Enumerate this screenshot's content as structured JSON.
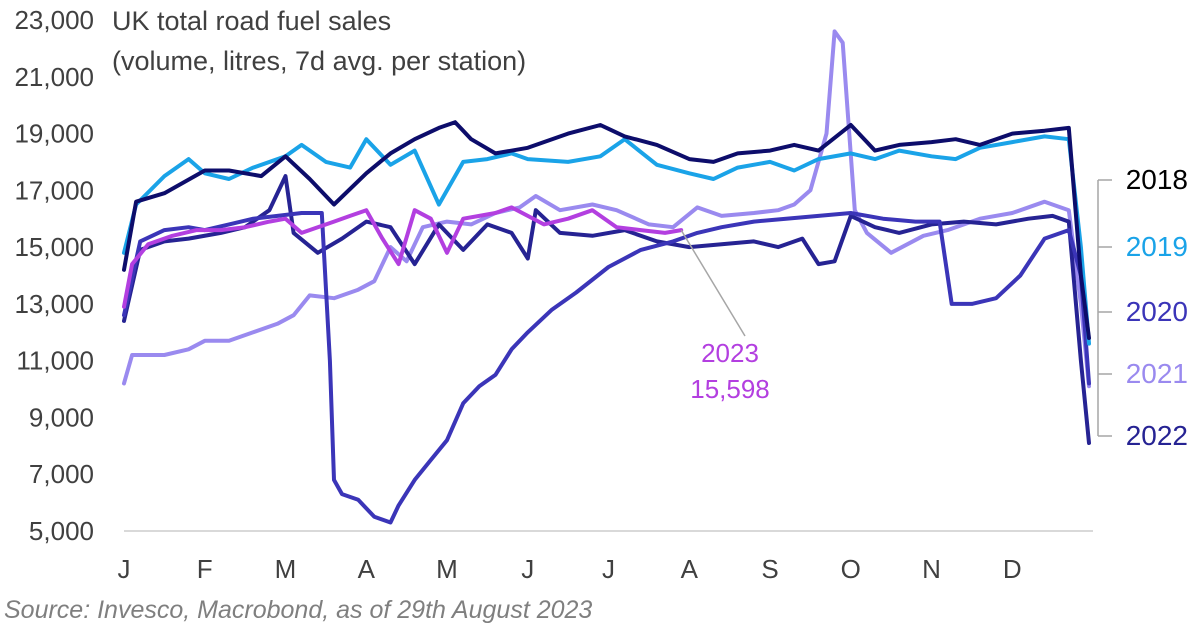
{
  "chart_data": {
    "type": "line",
    "title": "UK total road fuel sales",
    "subtitle": "(volume, litres, 7d avg. per station)",
    "xlabel": "",
    "ylabel": "",
    "ylim": [
      5000,
      23000
    ],
    "yticks": [
      5000,
      7000,
      9000,
      11000,
      13000,
      15000,
      17000,
      19000,
      21000,
      23000
    ],
    "ytick_labels": [
      "5,000",
      "7,000",
      "9,000",
      "11,000",
      "13,000",
      "15,000",
      "17,000",
      "19,000",
      "21,000",
      "23,000"
    ],
    "xlim": [
      0,
      12
    ],
    "x_tick_positions": [
      0,
      1,
      2,
      3,
      4,
      5,
      6,
      7,
      8,
      9,
      10,
      11
    ],
    "x_tick_labels": [
      "J",
      "F",
      "M",
      "A",
      "M",
      "J",
      "J",
      "A",
      "S",
      "O",
      "N",
      "D"
    ],
    "grid": false,
    "legend": "right",
    "series": [
      {
        "name": "2018",
        "color": "#0d0d6b",
        "x": [
          0,
          0.15,
          0.5,
          1,
          1.3,
          1.7,
          2,
          2.3,
          2.6,
          3,
          3.3,
          3.6,
          3.9,
          4.1,
          4.3,
          4.6,
          5,
          5.5,
          5.9,
          6.2,
          6.6,
          7,
          7.3,
          7.6,
          8,
          8.3,
          8.6,
          9,
          9.3,
          9.6,
          10,
          10.3,
          10.6,
          11,
          11.4,
          11.7,
          11.85,
          11.95
        ],
        "values": [
          14200,
          16600,
          16900,
          17700,
          17700,
          17500,
          18200,
          17400,
          16500,
          17600,
          18300,
          18800,
          19200,
          19400,
          18800,
          18300,
          18500,
          19000,
          19300,
          18900,
          18600,
          18100,
          18000,
          18300,
          18400,
          18600,
          18400,
          19300,
          18400,
          18600,
          18700,
          18800,
          18600,
          19000,
          19100,
          19200,
          14000,
          11800
        ]
      },
      {
        "name": "2019",
        "color": "#1aa3e8",
        "x": [
          0,
          0.15,
          0.5,
          0.8,
          1,
          1.3,
          1.6,
          2,
          2.2,
          2.5,
          2.8,
          3,
          3.3,
          3.6,
          3.9,
          4.2,
          4.5,
          4.8,
          5,
          5.5,
          5.9,
          6.2,
          6.6,
          7,
          7.3,
          7.6,
          8,
          8.3,
          8.6,
          9,
          9.3,
          9.6,
          10,
          10.3,
          10.6,
          11,
          11.4,
          11.7,
          11.85,
          11.95
        ],
        "values": [
          14800,
          16500,
          17500,
          18100,
          17600,
          17400,
          17800,
          18200,
          18600,
          18000,
          17800,
          18800,
          17900,
          18400,
          16500,
          18000,
          18100,
          18300,
          18100,
          18000,
          18200,
          18800,
          17900,
          17600,
          17400,
          17800,
          18000,
          17700,
          18100,
          18300,
          18100,
          18400,
          18200,
          18100,
          18500,
          18700,
          18900,
          18800,
          15000,
          11600
        ]
      },
      {
        "name": "2020",
        "color": "#3b35b8",
        "x": [
          0,
          0.2,
          0.5,
          0.8,
          1,
          1.3,
          1.6,
          1.9,
          2.2,
          2.45,
          2.55,
          2.6,
          2.7,
          2.9,
          3.1,
          3.3,
          3.4,
          3.6,
          3.8,
          4,
          4.2,
          4.4,
          4.6,
          4.8,
          5,
          5.3,
          5.6,
          6,
          6.4,
          6.8,
          7.1,
          7.4,
          7.8,
          8.2,
          8.6,
          9,
          9.4,
          9.8,
          10.1,
          10.25,
          10.5,
          10.8,
          11.1,
          11.4,
          11.7,
          11.85,
          11.95
        ],
        "values": [
          12600,
          15200,
          15600,
          15700,
          15600,
          15800,
          16000,
          16100,
          16200,
          16200,
          11000,
          6800,
          6300,
          6100,
          5500,
          5300,
          5900,
          6800,
          7500,
          8200,
          9500,
          10100,
          10500,
          11400,
          12000,
          12800,
          13400,
          14300,
          14900,
          15200,
          15500,
          15700,
          15900,
          16000,
          16100,
          16200,
          16000,
          15900,
          15900,
          13000,
          13000,
          13200,
          14000,
          15300,
          15600,
          14000,
          10200
        ]
      },
      {
        "name": "2021",
        "color": "#9a8aef",
        "x": [
          0,
          0.1,
          0.5,
          0.8,
          1,
          1.3,
          1.6,
          1.9,
          2.1,
          2.3,
          2.6,
          2.9,
          3.1,
          3.3,
          3.5,
          3.7,
          4,
          4.3,
          4.6,
          4.9,
          5.1,
          5.4,
          5.8,
          6.1,
          6.5,
          6.8,
          7.1,
          7.4,
          7.8,
          8.1,
          8.3,
          8.5,
          8.7,
          8.8,
          8.9,
          9.05,
          9.2,
          9.5,
          9.9,
          10.2,
          10.6,
          11,
          11.4,
          11.7,
          11.85,
          11.95
        ],
        "values": [
          10200,
          11200,
          11200,
          11400,
          11700,
          11700,
          12000,
          12300,
          12600,
          13300,
          13200,
          13500,
          13800,
          15000,
          14500,
          15700,
          15900,
          15800,
          16200,
          16400,
          16800,
          16300,
          16500,
          16300,
          15800,
          15700,
          16400,
          16100,
          16200,
          16300,
          16500,
          17000,
          19000,
          22600,
          22200,
          16300,
          15500,
          14800,
          15400,
          15600,
          16000,
          16200,
          16600,
          16300,
          13000,
          10100
        ]
      },
      {
        "name": "2022",
        "color": "#262393",
        "x": [
          0,
          0.2,
          0.5,
          0.8,
          1.2,
          1.5,
          1.8,
          2,
          2.1,
          2.4,
          2.7,
          3,
          3.3,
          3.6,
          3.9,
          4.2,
          4.5,
          4.8,
          5,
          5.1,
          5.4,
          5.8,
          6.2,
          6.6,
          7,
          7.4,
          7.8,
          8.1,
          8.4,
          8.6,
          8.8,
          9,
          9.3,
          9.6,
          10,
          10.4,
          10.8,
          11.2,
          11.5,
          11.7,
          11.85,
          11.95
        ],
        "values": [
          12400,
          14900,
          15200,
          15300,
          15500,
          15700,
          16300,
          17500,
          15500,
          14800,
          15300,
          15900,
          15700,
          14400,
          15800,
          14900,
          15800,
          15500,
          14600,
          16300,
          15500,
          15400,
          15600,
          15200,
          15000,
          15100,
          15200,
          15000,
          15300,
          14400,
          14500,
          16100,
          15700,
          15500,
          15800,
          15900,
          15800,
          16000,
          16100,
          15900,
          11000,
          8100
        ]
      },
      {
        "name": "2023",
        "color": "#b33fe0",
        "x": [
          0,
          0.1,
          0.3,
          0.6,
          0.9,
          1.2,
          1.5,
          1.8,
          2,
          2.2,
          2.4,
          2.6,
          2.8,
          3,
          3.2,
          3.4,
          3.6,
          3.8,
          4,
          4.2,
          4.4,
          4.6,
          4.8,
          5,
          5.2,
          5.5,
          5.8,
          6.1,
          6.4,
          6.7,
          6.9
        ],
        "values": [
          12900,
          14400,
          15100,
          15400,
          15600,
          15600,
          15700,
          15900,
          16000,
          15500,
          15700,
          15900,
          16100,
          16300,
          15300,
          14400,
          16300,
          16000,
          14800,
          16000,
          16100,
          16200,
          16400,
          16100,
          15800,
          16000,
          16300,
          15700,
          15600,
          15500,
          15598
        ]
      }
    ],
    "legend_entries": [
      {
        "label": "2018",
        "color": "#000000"
      },
      {
        "label": "2019",
        "color": "#1aa3e8"
      },
      {
        "label": "2020",
        "color": "#3b35b8"
      },
      {
        "label": "2021",
        "color": "#9a8aef"
      },
      {
        "label": "2022",
        "color": "#262393"
      }
    ],
    "annotations": [
      {
        "year": "2023",
        "value": "15,598",
        "color": "#b33fe0"
      }
    ]
  },
  "source": "Source: Invesco, Macrobond, as of 29th August 2023"
}
